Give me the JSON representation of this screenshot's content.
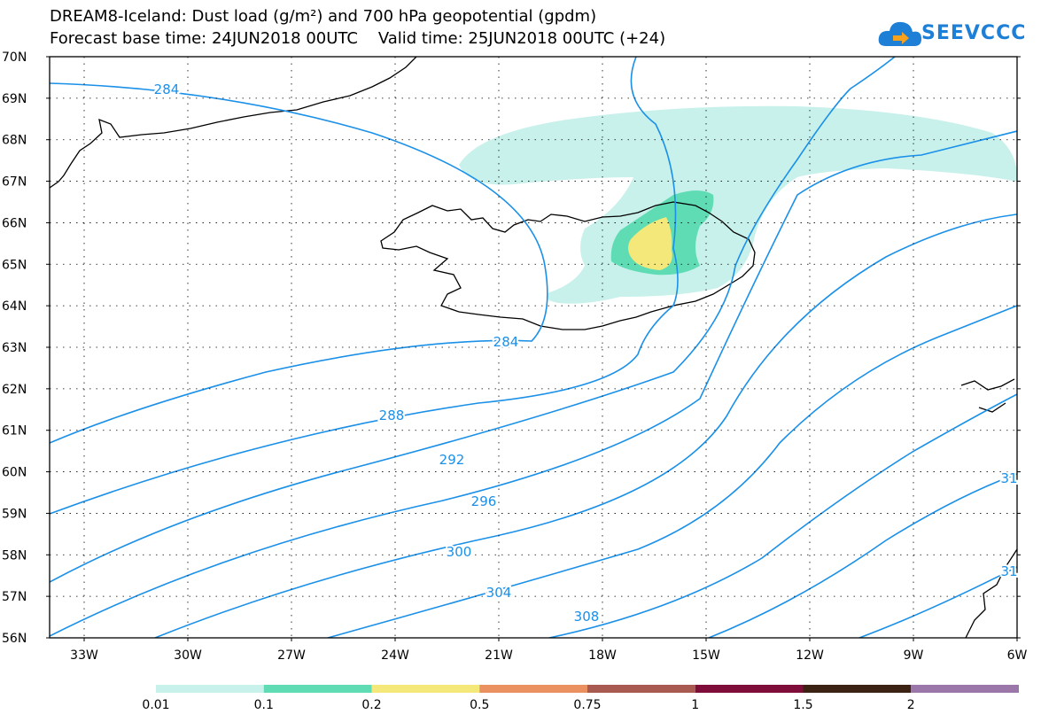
{
  "header": {
    "title_line1": "DREAM8-Iceland: Dust load (g/m²) and 700 hPa geopotential (gpdm)",
    "title_line2": "Forecast base time: 24JUN2018 00UTC    Valid time: 25JUN2018 00UTC (+24)"
  },
  "brand": {
    "name": "SEEVCCC",
    "icon": "cloud-logo-icon",
    "color": "#1e7fd6"
  },
  "map": {
    "lat_labels": [
      "70N",
      "69N",
      "68N",
      "67N",
      "66N",
      "65N",
      "64N",
      "63N",
      "62N",
      "61N",
      "60N",
      "59N",
      "58N",
      "57N",
      "56N"
    ],
    "lon_labels": [
      "33W",
      "30W",
      "27W",
      "24W",
      "21W",
      "18W",
      "15W",
      "12W",
      "9W",
      "6W"
    ],
    "contour_color": "#1a90e8",
    "contour_labels": [
      "284",
      "284",
      "288",
      "292",
      "296",
      "300",
      "304",
      "308",
      "31",
      "31"
    ]
  },
  "legend": {
    "labels": [
      "0.01",
      "0.1",
      "0.2",
      "0.5",
      "0.75",
      "1",
      "1.5",
      "2"
    ],
    "colors": [
      "#c8f1ec",
      "#5fdcb4",
      "#f5e87a",
      "#eb9060",
      "#a85a50",
      "#7f0d3a",
      "#3b2212",
      "#9b76a8"
    ]
  }
}
